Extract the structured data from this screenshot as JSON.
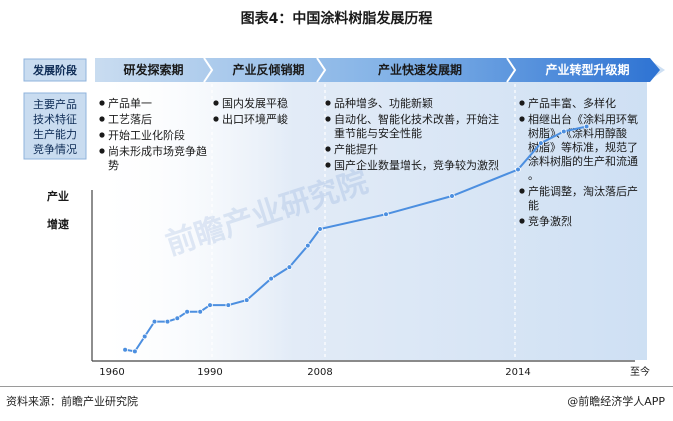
{
  "title": "图表4：中国涂料树脂发展历程",
  "source_left": "资料来源：前瞻产业研究院",
  "source_right": "@前瞻经济学人APP",
  "watermark": "前瞻产业研究院",
  "chart_data": {
    "type": "line",
    "title": "图表4：中国涂料树脂发展历程",
    "ylabel": "产业增速",
    "xlabel": "",
    "x_ticks": [
      "1960",
      "1990",
      "2008",
      "2014",
      "至今"
    ],
    "row_headers": [
      "发展阶段",
      "主要产品技术特征生产能力竞争情况"
    ],
    "phases": [
      {
        "name": "研发探索期",
        "bullets": [
          "产品单一",
          "工艺落后",
          "开始工业化阶段",
          "尚未形成市场竞争趋势"
        ]
      },
      {
        "name": "产业反倾销期",
        "bullets": [
          "国内发展平稳",
          "出口环境严峻"
        ]
      },
      {
        "name": "产业快速发展期",
        "bullets": [
          "品种增多、功能新颖",
          "自动化、智能化技术改善，开始注重节能与安全性能",
          "产能提升",
          "国产企业数量增长，竞争较为激烈"
        ]
      },
      {
        "name": "产业转型升级期",
        "bullets": [
          "产品丰富、多样化",
          "相继出台《涂料用环氧树脂》、《涂料用醇酸树脂》等标准，规范了涂料树脂的生产和流通。",
          "产能调整，淘汰落后产能",
          "竞争激烈"
        ]
      }
    ],
    "series": [
      {
        "values": [
          {
            "x": 1964,
            "y": 1.0
          },
          {
            "x": 1967,
            "y": 0.8
          },
          {
            "x": 1970,
            "y": 2.6
          },
          {
            "x": 1973,
            "y": 4.4
          },
          {
            "x": 1977,
            "y": 4.4
          },
          {
            "x": 1980,
            "y": 4.8
          },
          {
            "x": 1983,
            "y": 5.6
          },
          {
            "x": 1987,
            "y": 5.6
          },
          {
            "x": 1990,
            "y": 6.4
          },
          {
            "x": 1993,
            "y": 6.4
          },
          {
            "x": 1996,
            "y": 7.0
          },
          {
            "x": 2000,
            "y": 9.6
          },
          {
            "x": 2003,
            "y": 11.0
          },
          {
            "x": 2006,
            "y": 13.6
          },
          {
            "x": 2008,
            "y": 15.6
          },
          {
            "x": 2010,
            "y": 17.4
          },
          {
            "x": 2012,
            "y": 19.6
          },
          {
            "x": 2014,
            "y": 22.8
          },
          {
            "x": 2017,
            "y": 26.0
          },
          {
            "x": 2020,
            "y": 27.4
          },
          {
            "x": 2023,
            "y": 28.0
          }
        ]
      }
    ],
    "grid": false,
    "colors": {
      "arrow_left": "#c9dcf0",
      "arrow_mid": "#7fb0e6",
      "arrow_right": "#2e73d3",
      "header_box": "#c9dcf0",
      "text_dark": "#1a1a1a",
      "line": "#4c8fe0",
      "marker": "#4c8fe0",
      "axis": "#444444"
    }
  }
}
